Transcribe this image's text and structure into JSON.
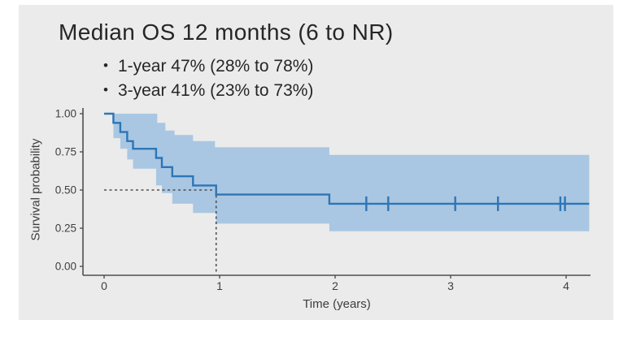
{
  "slide": {
    "title": "Median OS 12 months (6 to NR)",
    "bullet_glyph": "•",
    "bullets": [
      "1-year 47% (28% to 78%)",
      "3-year 41% (23% to 73%)"
    ],
    "background_color": "#ebebeb"
  },
  "chart_data": {
    "type": "line",
    "subtype": "kaplan-meier-step-with-confidence-band",
    "title": "Median OS 12 months (6 to NR)",
    "xlabel": "Time (years)",
    "ylabel": "Survival probability",
    "x_ticks": {
      "labels": [
        "0",
        "1",
        "2",
        "3",
        "4"
      ],
      "values": [
        0,
        1,
        2,
        3,
        4
      ]
    },
    "y_ticks": {
      "labels": [
        "1.00",
        "0.75",
        "0.50",
        "0.25",
        "0.00"
      ],
      "values": [
        1.0,
        0.75,
        0.5,
        0.25,
        0.0
      ]
    },
    "xlim": [
      -0.18,
      4.35
    ],
    "ylim": [
      0.0,
      1.05
    ],
    "grid": "off",
    "legend": "none",
    "curve_end_time": 4.2,
    "survival_steps": [
      [
        0.0,
        1.0
      ],
      [
        0.08,
        0.94
      ],
      [
        0.14,
        0.88
      ],
      [
        0.2,
        0.82
      ],
      [
        0.25,
        0.77
      ],
      [
        0.45,
        0.71
      ],
      [
        0.5,
        0.65
      ],
      [
        0.59,
        0.59
      ],
      [
        0.77,
        0.53
      ],
      [
        0.97,
        0.47
      ],
      [
        1.95,
        0.41
      ]
    ],
    "ci_upper_steps": [
      [
        0.08,
        1.0
      ],
      [
        0.46,
        0.94
      ],
      [
        0.53,
        0.89
      ],
      [
        0.61,
        0.86
      ],
      [
        0.77,
        0.82
      ],
      [
        0.96,
        0.78
      ],
      [
        1.95,
        0.73
      ]
    ],
    "ci_lower_steps": [
      [
        0.08,
        0.84
      ],
      [
        0.14,
        0.77
      ],
      [
        0.2,
        0.7
      ],
      [
        0.25,
        0.64
      ],
      [
        0.45,
        0.53
      ],
      [
        0.5,
        0.48
      ],
      [
        0.59,
        0.41
      ],
      [
        0.77,
        0.35
      ],
      [
        0.97,
        0.28
      ],
      [
        1.95,
        0.23
      ]
    ],
    "censor_times": [
      2.27,
      2.46,
      3.04,
      3.41,
      3.95,
      3.99
    ],
    "censor_survival": 0.41,
    "median_marker": {
      "time": 0.97,
      "probability": 0.5
    },
    "annotations": {
      "median_os": "12 months (6 to NR)",
      "one_year": {
        "estimate": "47%",
        "ci_low": "28%",
        "ci_high": "78%"
      },
      "three_year": {
        "estimate": "41%",
        "ci_low": "23%",
        "ci_high": "73%"
      }
    },
    "colors": {
      "line": "#2e75b6",
      "band": "#a9c7e2",
      "axis": "#4f4f4f",
      "dashed": "#4f4f4f",
      "tick_text": "#3f3f3f",
      "text": "#262626"
    }
  }
}
